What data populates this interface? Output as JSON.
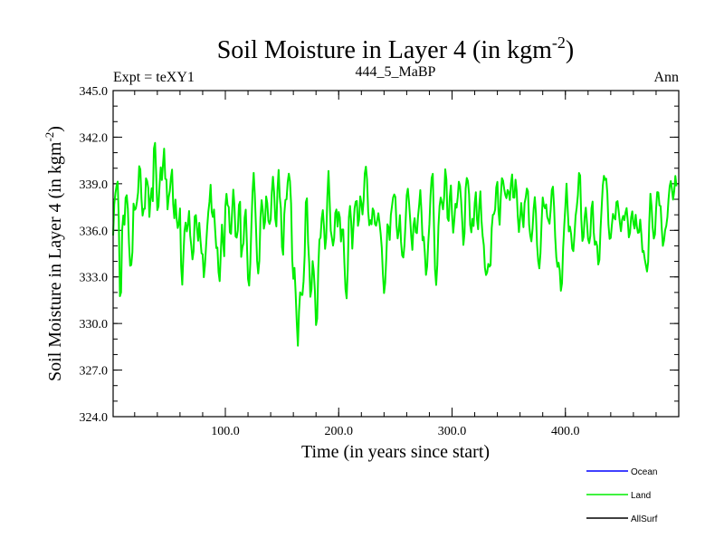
{
  "chart_data": {
    "type": "line",
    "title": "Soil Moisture in Layer 4 (in kgm",
    "title_superscript": "-2",
    "title_suffix": ")",
    "subtitle_left": "Expt = teXY1",
    "subtitle_center": "444_5_MaBP",
    "subtitle_right": "Ann",
    "xlabel": "Time (in years since start)",
    "ylabel": "Soil Moisture in Layer 4 (in kgm",
    "ylabel_superscript": "-2",
    "ylabel_suffix": ")",
    "xlim": [
      1,
      500
    ],
    "ylim": [
      324.0,
      345.0
    ],
    "x_ticks": [
      100,
      200,
      300,
      400
    ],
    "x_tick_labels": [
      "100.0",
      "200.0",
      "300.0",
      "400.0"
    ],
    "y_ticks": [
      324,
      327,
      330,
      333,
      336,
      339,
      342,
      345
    ],
    "y_tick_labels": [
      "324.0",
      "327.0",
      "330.0",
      "333.0",
      "336.0",
      "339.0",
      "342.0",
      "345.0"
    ],
    "grid": false,
    "legend_position": "bottom-right",
    "legend": [
      {
        "name": "Ocean",
        "color": "#0000ff"
      },
      {
        "name": "Land",
        "color": "#00ee00"
      },
      {
        "name": "AllSurf",
        "color": "#000000"
      }
    ],
    "series": [
      {
        "name": "Land",
        "color": "#00ee00",
        "x_start": 1,
        "x_step": 1,
        "values": [
          335.67,
          337.67,
          338.37,
          338.86,
          339.14,
          336.74,
          331.76,
          332.01,
          336.08,
          336.96,
          336.36,
          338.09,
          338.26,
          337.38,
          335.17,
          333.72,
          333.77,
          334.6,
          337.72,
          337.32,
          337.4,
          337.83,
          338.43,
          340.13,
          339.92,
          338.04,
          336.95,
          337.38,
          337.39,
          339.35,
          339.17,
          338.73,
          336.86,
          338.02,
          338.71,
          337.88,
          341.27,
          341.63,
          339.59,
          337.3,
          337.55,
          338.96,
          340.06,
          339.24,
          340.24,
          341.26,
          339.32,
          339.27,
          337.35,
          338.12,
          338.53,
          339.38,
          339.91,
          337.68,
          336.78,
          337.98,
          336.78,
          336.15,
          336.44,
          337.41,
          333.7,
          332.5,
          334.42,
          335.99,
          336.5,
          335.93,
          336.39,
          337.24,
          335.67,
          334.97,
          334.13,
          334.67,
          336.89,
          336.98,
          336.1,
          335.33,
          336.48,
          335.41,
          334.52,
          334.46,
          332.98,
          333.75,
          335.01,
          336.22,
          337.2,
          337.84,
          338.93,
          337.19,
          336.86,
          337.34,
          336.03,
          334.86,
          334.89,
          333.31,
          332.73,
          334.55,
          336.37,
          335.26,
          334.33,
          337.52,
          338.35,
          337.63,
          337.5,
          335.87,
          335.78,
          337.21,
          338.62,
          337.63,
          335.61,
          335.53,
          335.99,
          337.64,
          337.84,
          334.29,
          334.89,
          335.17,
          336.81,
          337.33,
          335.2,
          332.86,
          332.44,
          333.84,
          336.33,
          338.48,
          339.7,
          338.29,
          336.27,
          334.05,
          333.22,
          334.04,
          336.82,
          337.94,
          337.32,
          336.11,
          336.53,
          338.18,
          337.75,
          336.61,
          336.41,
          336.7,
          338.44,
          339.45,
          338.48,
          336.77,
          336.25,
          338.59,
          339.89,
          338.16,
          337.41,
          334.92,
          334.43,
          337.04,
          337.96,
          338.0,
          339.1,
          339.65,
          339.17,
          337.72,
          334.13,
          332.88,
          333.58,
          331.99,
          330.09,
          328.57,
          330.78,
          332.01,
          331.86,
          331.84,
          332.71,
          334.4,
          337.81,
          338.06,
          335.23,
          333.9,
          331.72,
          332.21,
          334.02,
          333.36,
          332.11,
          329.9,
          330.31,
          333.55,
          335.4,
          335.54,
          336.76,
          337.3,
          336.24,
          334.81,
          335.52,
          338.15,
          339.82,
          337.93,
          335.98,
          335.52,
          335.02,
          335.49,
          337.12,
          337.34,
          336.24,
          337.18,
          336.83,
          335.28,
          336.05,
          336.05,
          333.96,
          332.21,
          331.62,
          333.51,
          336.84,
          337.57,
          336.56,
          334.82,
          336.24,
          337.4,
          337.85,
          337.89,
          336.29,
          336.7,
          338.19,
          337.78,
          337.02,
          337.94,
          339.66,
          340.1,
          339.28,
          337.23,
          336.33,
          336.65,
          336.39,
          337.41,
          337.24,
          336.41,
          336.3,
          336.66,
          337.1,
          336.49,
          335.8,
          334.88,
          333.2,
          331.96,
          332.61,
          334.25,
          336.39,
          336.2,
          335.38,
          336.98,
          337.55,
          338.12,
          338.31,
          338.15,
          336.31,
          335.48,
          335.98,
          336.98,
          335.26,
          334.38,
          334.25,
          335.03,
          336.51,
          338.25,
          338.68,
          337.84,
          336.78,
          335.6,
          334.74,
          336.32,
          336.78,
          335.88,
          335.82,
          336.89,
          337.65,
          338.59,
          337.22,
          335.36,
          335.58,
          334.54,
          333.13,
          333.66,
          335.19,
          336.37,
          338.22,
          339.37,
          339.64,
          336.47,
          333.47,
          332.48,
          333.78,
          336.26,
          337.57,
          338.11,
          337.79,
          337.35,
          338.09,
          339.93,
          339.28,
          336.79,
          336.61,
          338.14,
          338.89,
          337.01,
          335.85,
          336.66,
          337.71,
          337.46,
          338.12,
          339.13,
          338.87,
          337.92,
          336.56,
          335.06,
          335.81,
          338.69,
          339.37,
          339.17,
          338.32,
          336.35,
          335.87,
          336.74,
          336.28,
          337.75,
          338.45,
          336.71,
          336.07,
          337.56,
          338.51,
          336.63,
          335.64,
          335.05,
          333.58,
          333.12,
          333.3,
          333.84,
          333.66,
          333.76,
          336.16,
          336.99,
          337.05,
          337.33,
          338.77,
          339.12,
          337.21,
          336.36,
          338.15,
          339.36,
          339.2,
          338.67,
          338.27,
          338.07,
          338.6,
          338.46,
          337.95,
          339.03,
          339.6,
          338.11,
          338.1,
          339.26,
          338.55,
          336.9,
          335.89,
          336.78,
          337.76,
          336.91,
          336.2,
          337.75,
          338.12,
          338.69,
          338.51,
          336.36,
          335.67,
          335.29,
          336.08,
          337.39,
          338.14,
          337.11,
          335.06,
          334.02,
          333.55,
          334.52,
          336.55,
          338.12,
          337.61,
          337.42,
          337.67,
          336.85,
          336.64,
          336.43,
          337.33,
          338.59,
          338.81,
          337.53,
          335.56,
          334.25,
          333.65,
          333.91,
          333.42,
          332.11,
          332.59,
          334.86,
          336.33,
          337.58,
          339.01,
          337.4,
          335.93,
          336.24,
          335.79,
          334.82,
          334.66,
          335.69,
          336.92,
          337.47,
          338.26,
          339.69,
          339.53,
          336.77,
          335.32,
          335.57,
          336.84,
          337.46,
          336.53,
          335.44,
          335.17,
          335.65,
          337.42,
          337.85,
          335.88,
          335.07,
          335.28,
          335.0,
          333.8,
          334.1,
          336.09,
          337.5,
          338.88,
          339.51,
          339.25,
          339.33,
          338.39,
          336.36,
          335.45,
          335.51,
          336.34,
          337.06,
          336.82,
          336.7,
          337.81,
          337.88,
          337.24,
          336.52,
          335.94,
          336.68,
          336.93,
          336.65,
          337.14,
          337.43,
          336.62,
          335.55,
          335.84,
          336.84,
          337.22,
          336.44,
          336.12,
          337.0,
          336.26,
          335.84,
          335.87,
          336.69,
          335.77,
          334.61,
          334.67,
          334.15,
          333.75,
          333.35,
          333.95,
          336.52,
          338.36,
          337.55,
          336.18,
          335.47,
          335.73,
          337.38,
          338.46,
          338.44,
          337.6,
          337.57,
          336.13,
          335.0,
          335.35,
          336.02,
          336.29,
          336.86,
          338.02,
          338.84,
          339.17,
          338.66,
          337.98,
          338.53,
          339.5,
          338.84
        ]
      }
    ]
  }
}
